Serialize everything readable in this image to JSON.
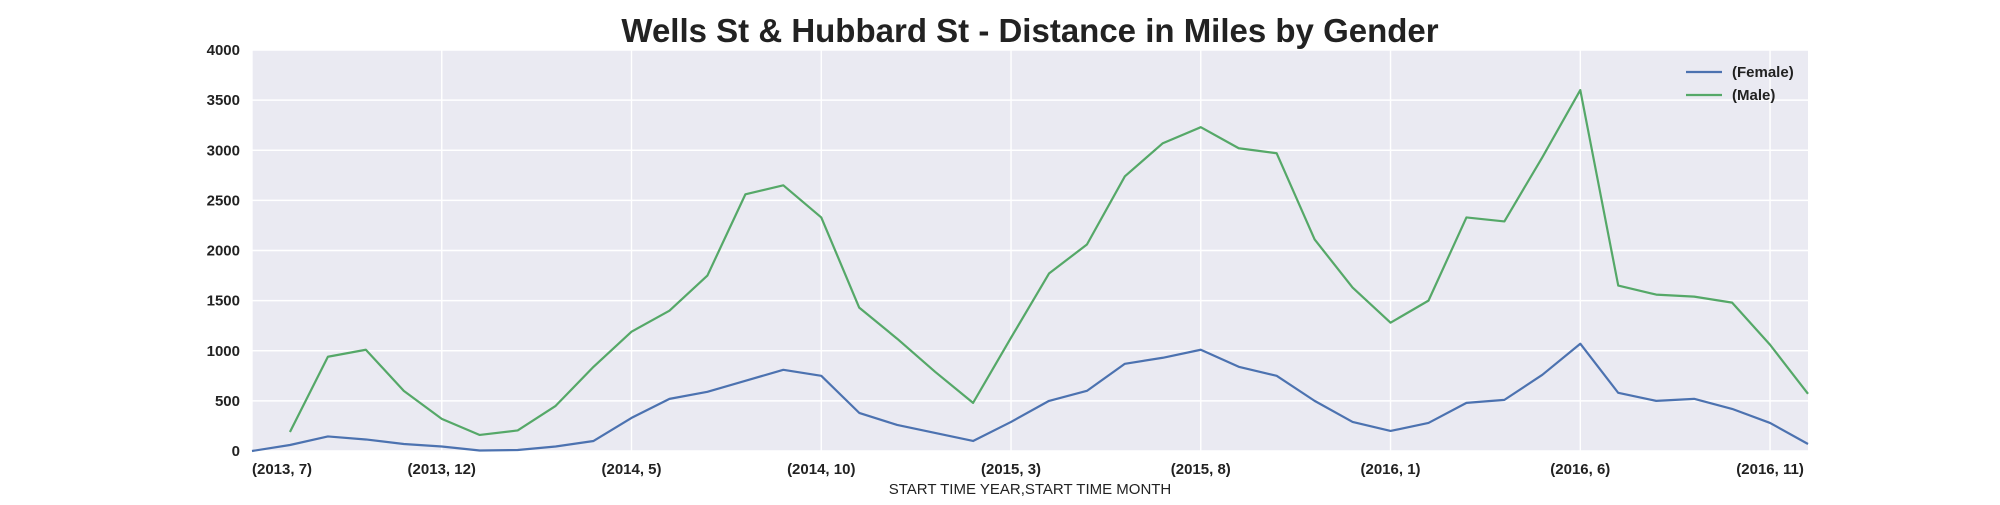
{
  "chart_data": {
    "type": "line",
    "title": "Wells St & Hubbard St - Distance in Miles by Gender",
    "xlabel": "START TIME YEAR,START TIME MONTH",
    "ylabel": "",
    "ylim": [
      0,
      4000
    ],
    "yticks": [
      "0",
      "500",
      "1000",
      "1500",
      "2000",
      "2500",
      "3000",
      "3500",
      "4000"
    ],
    "x": [
      "(2013, 7)",
      "(2013, 8)",
      "(2013, 9)",
      "(2013, 10)",
      "(2013, 11)",
      "(2013, 12)",
      "(2014, 1)",
      "(2014, 2)",
      "(2014, 3)",
      "(2014, 4)",
      "(2014, 5)",
      "(2014, 6)",
      "(2014, 7)",
      "(2014, 8)",
      "(2014, 9)",
      "(2014, 10)",
      "(2014, 11)",
      "(2014, 12)",
      "(2015, 1)",
      "(2015, 2)",
      "(2015, 3)",
      "(2015, 4)",
      "(2015, 5)",
      "(2015, 6)",
      "(2015, 7)",
      "(2015, 8)",
      "(2015, 9)",
      "(2015, 10)",
      "(2015, 11)",
      "(2015, 12)",
      "(2016, 1)",
      "(2016, 2)",
      "(2016, 3)",
      "(2016, 4)",
      "(2016, 5)",
      "(2016, 6)",
      "(2016, 7)",
      "(2016, 8)",
      "(2016, 9)",
      "(2016, 10)",
      "(2016, 11)",
      "(2016, 12)"
    ],
    "xticks": [
      "(2013, 7)",
      "(2013, 12)",
      "(2014, 5)",
      "(2014, 10)",
      "(2015, 3)",
      "(2015, 8)",
      "(2016, 1)",
      "(2016, 6)",
      "(2016, 11)"
    ],
    "grid": true,
    "legend_position": "top-right",
    "background": "#eaeaf2",
    "series": [
      {
        "name": "(Female)",
        "color": "#4c72b0",
        "values": [
          0,
          60,
          145,
          115,
          70,
          45,
          5,
          10,
          45,
          100,
          330,
          520,
          590,
          700,
          810,
          750,
          380,
          260,
          180,
          100,
          290,
          500,
          600,
          870,
          930,
          1010,
          840,
          750,
          500,
          290,
          200,
          280,
          480,
          510,
          760,
          1070,
          580,
          500,
          520,
          420,
          280,
          70
        ]
      },
      {
        "name": "(Male)",
        "color": "#55a868",
        "values": [
          null,
          190,
          940,
          1010,
          600,
          320,
          160,
          205,
          450,
          840,
          1190,
          1400,
          1750,
          2560,
          2650,
          2330,
          1430,
          1120,
          790,
          480,
          1130,
          1770,
          2060,
          2740,
          3070,
          3230,
          3020,
          2970,
          2110,
          1630,
          1280,
          1500,
          2330,
          2290,
          2930,
          3600,
          1650,
          1560,
          1540,
          1480,
          1060,
          570
        ]
      }
    ]
  }
}
